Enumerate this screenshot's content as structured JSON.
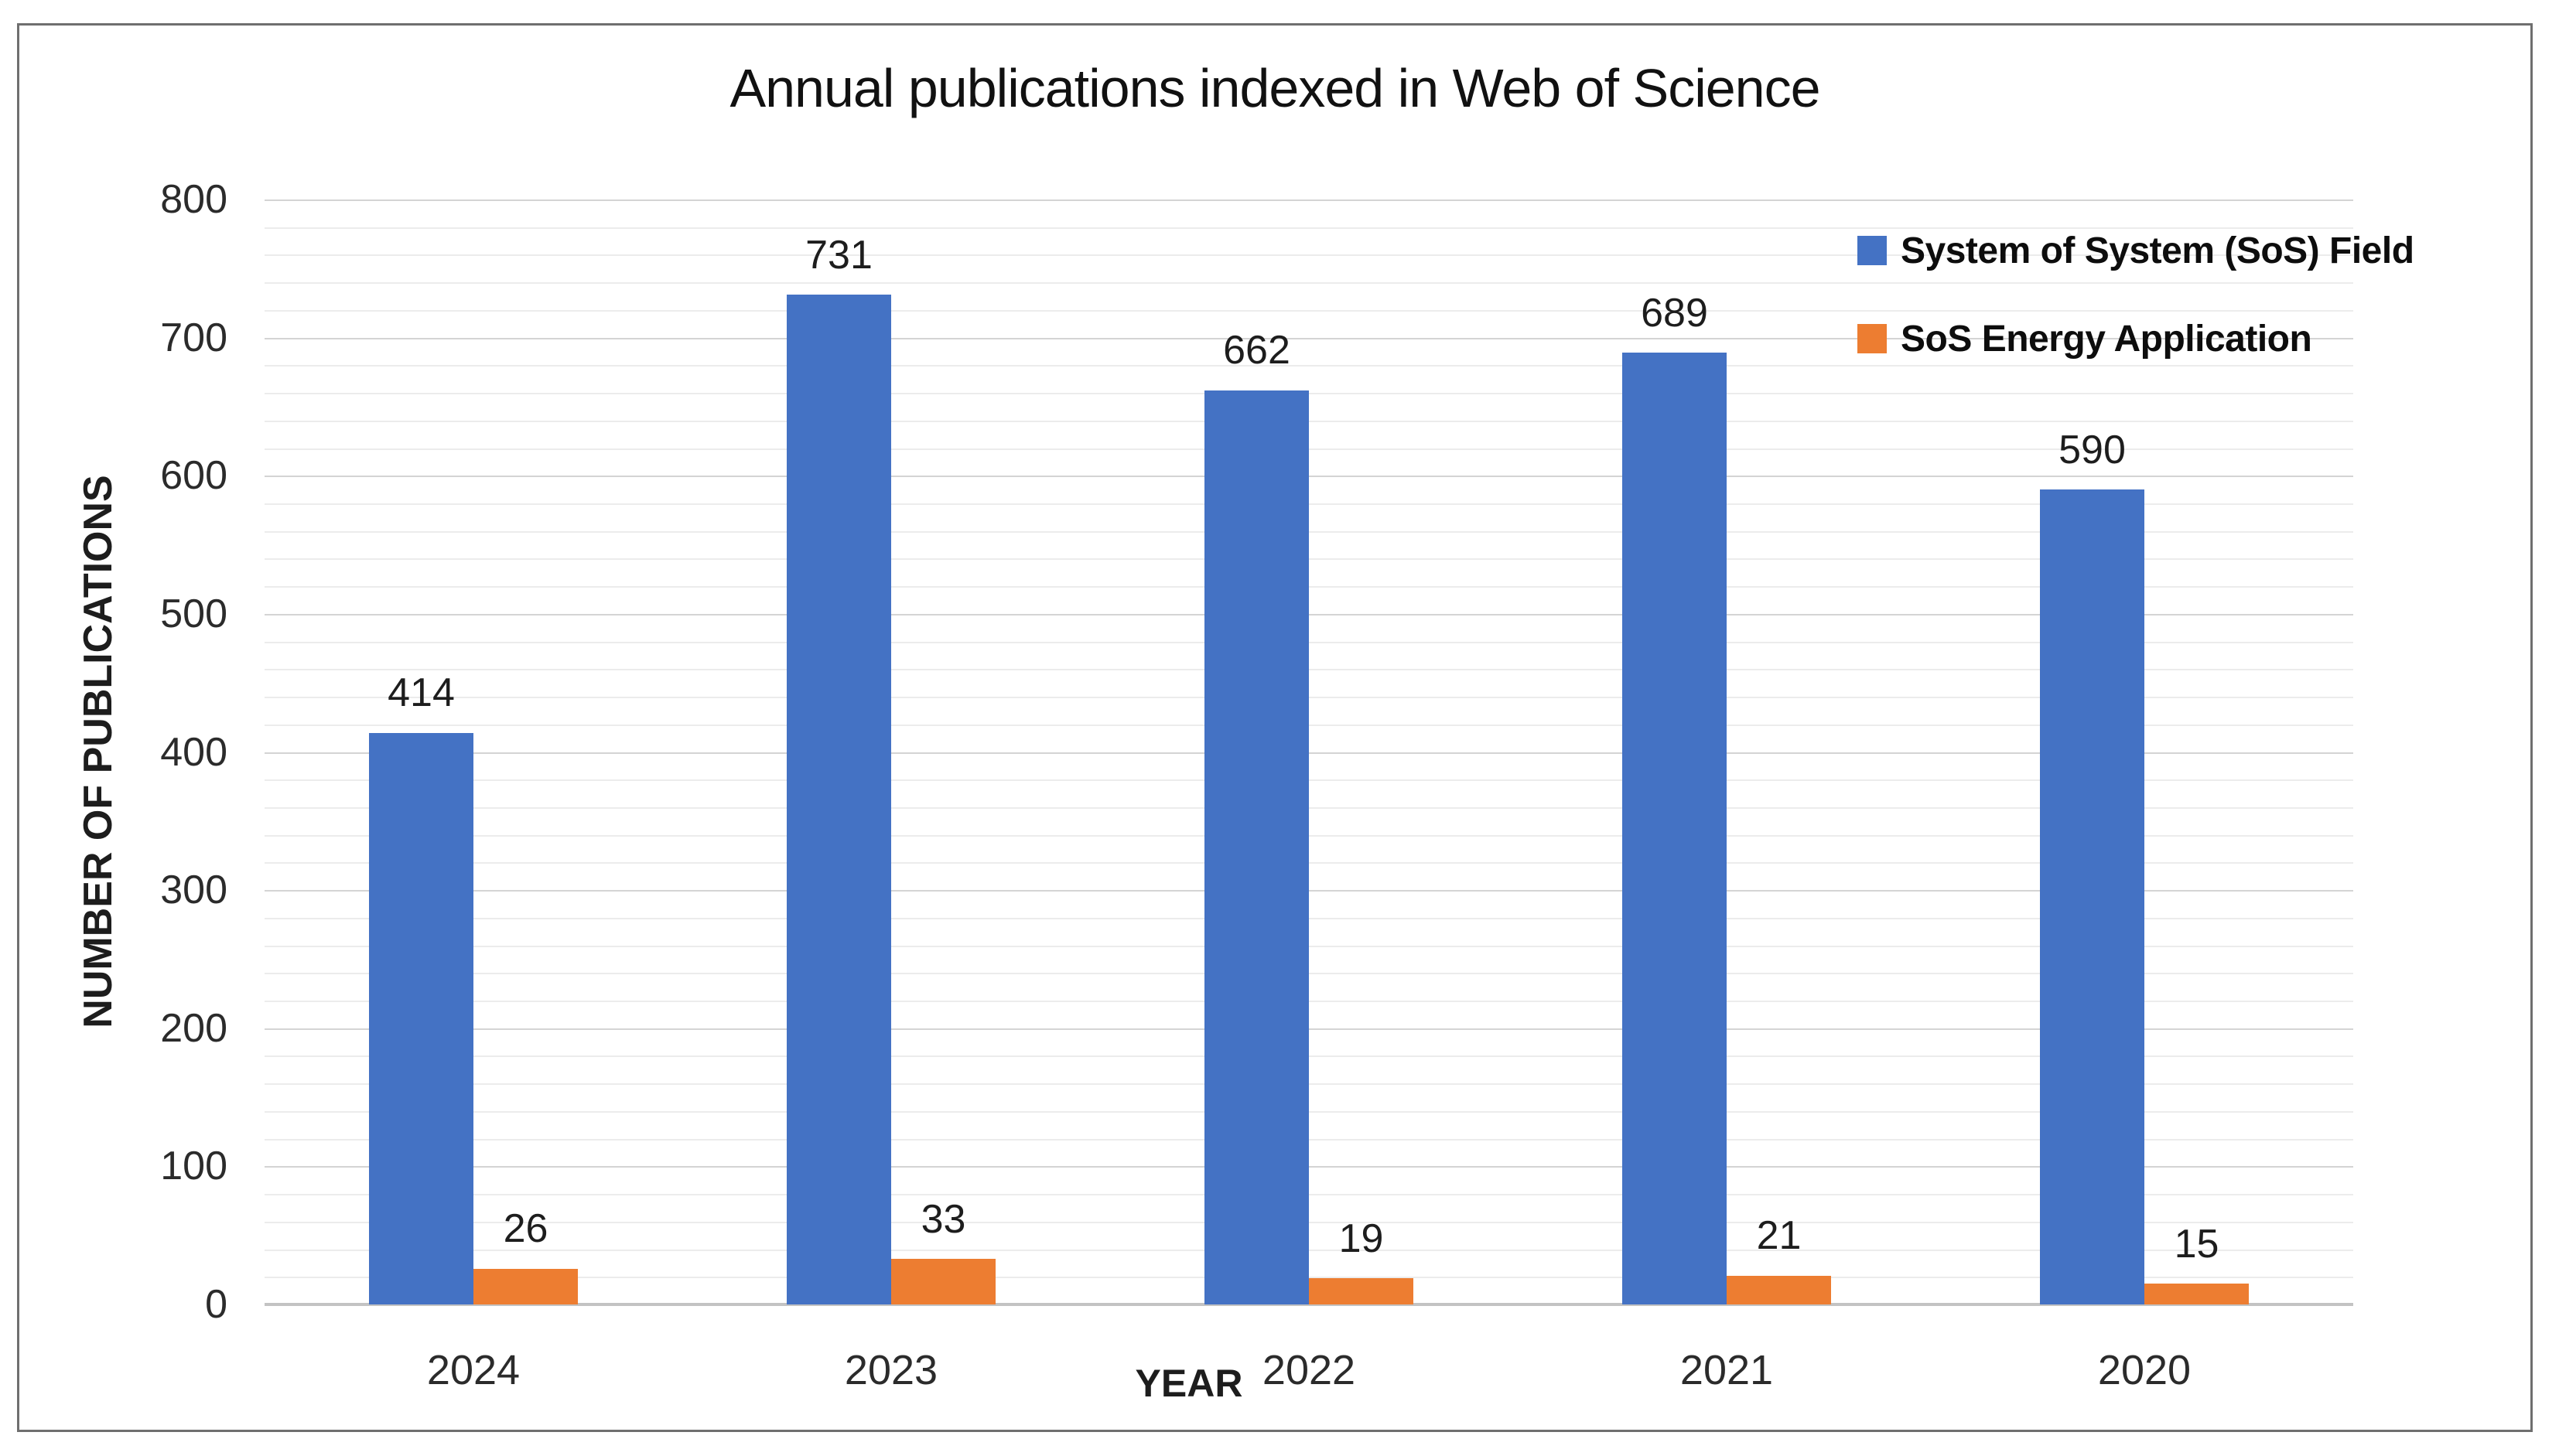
{
  "chart_data": {
    "type": "bar",
    "title": "Annual publications indexed in Web of Science",
    "xlabel": "YEAR",
    "ylabel": "NUMBER OF PUBLICATIONS",
    "categories": [
      "2024",
      "2023",
      "2022",
      "2021",
      "2020"
    ],
    "series": [
      {
        "name": "System of System (SoS) Field",
        "color": "#4472C4",
        "values": [
          414,
          731,
          662,
          689,
          590
        ]
      },
      {
        "name": "SoS Energy Application",
        "color": "#ED7D31",
        "values": [
          26,
          33,
          19,
          21,
          15
        ]
      }
    ],
    "ylim": [
      0,
      800
    ],
    "ytick_step": 100,
    "yminor_step": 20,
    "grid": true,
    "value_labels": true,
    "legend_position": "top-right-inside"
  }
}
